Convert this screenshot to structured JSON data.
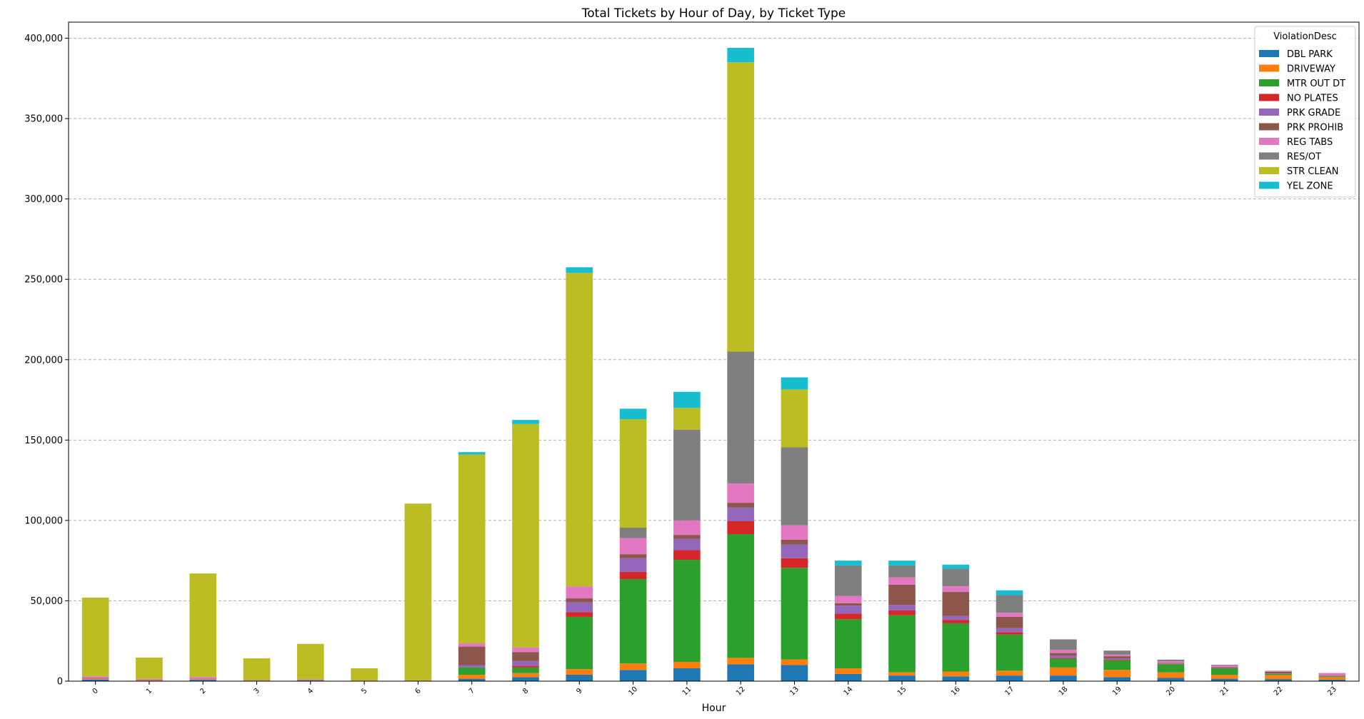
{
  "chart_data": {
    "type": "bar",
    "stacked": true,
    "title": "Total Tickets by Hour of Day, by Ticket Type",
    "xlabel": "Hour",
    "ylabel": "",
    "ylim": [
      0,
      410000
    ],
    "yticks": [
      0,
      50000,
      100000,
      150000,
      200000,
      250000,
      300000,
      350000,
      400000
    ],
    "ytick_labels": [
      "0",
      "50,000",
      "100,000",
      "150,000",
      "200,000",
      "250,000",
      "300,000",
      "350,000",
      "400,000"
    ],
    "grid": "y-dashed",
    "legend_title": "ViolationDesc",
    "legend_position": "top-right",
    "categories": [
      "0",
      "1",
      "2",
      "3",
      "4",
      "5",
      "6",
      "7",
      "8",
      "9",
      "10",
      "11",
      "12",
      "13",
      "14",
      "15",
      "16",
      "17",
      "18",
      "19",
      "20",
      "21",
      "22",
      "23"
    ],
    "series": [
      {
        "name": "DBL PARK",
        "color": "#1f77b4",
        "values": [
          1000,
          300,
          800,
          300,
          400,
          200,
          300,
          1500,
          2500,
          4000,
          7000,
          8000,
          10500,
          10000,
          4500,
          3500,
          3000,
          3500,
          3500,
          2500,
          2000,
          1500,
          1300,
          1000
        ]
      },
      {
        "name": "DRIVEWAY",
        "color": "#ff7f0e",
        "values": [
          500,
          300,
          400,
          200,
          200,
          100,
          200,
          2500,
          2500,
          3500,
          4000,
          4000,
          4000,
          3500,
          3500,
          2000,
          3000,
          3000,
          5000,
          4500,
          3500,
          2500,
          2500,
          1500
        ]
      },
      {
        "name": "MTR OUT DT",
        "color": "#2ca02c",
        "values": [
          0,
          0,
          0,
          0,
          0,
          0,
          0,
          4500,
          3500,
          32500,
          52500,
          63500,
          77000,
          57000,
          30500,
          35500,
          30000,
          22500,
          5500,
          6000,
          5000,
          4000,
          800,
          500
        ]
      },
      {
        "name": "NO PLATES",
        "color": "#d62728",
        "values": [
          0,
          0,
          0,
          0,
          0,
          0,
          0,
          0,
          1000,
          3000,
          4500,
          6000,
          8000,
          6000,
          3500,
          3000,
          2000,
          1500,
          500,
          500,
          200,
          200,
          100,
          100
        ]
      },
      {
        "name": "PRK GRADE",
        "color": "#9467bd",
        "values": [
          500,
          300,
          400,
          200,
          300,
          100,
          0,
          1500,
          3000,
          6000,
          8500,
          7000,
          8500,
          8500,
          5000,
          3500,
          2500,
          2500,
          1500,
          700,
          300,
          200,
          100,
          100
        ]
      },
      {
        "name": "PRK PROHIB",
        "color": "#8c564b",
        "values": [
          0,
          0,
          0,
          0,
          0,
          0,
          0,
          11500,
          5500,
          2500,
          2500,
          2500,
          3000,
          3000,
          1500,
          12500,
          15000,
          7000,
          1500,
          1300,
          400,
          300,
          1000,
          300
        ]
      },
      {
        "name": "REG TABS",
        "color": "#e377c2",
        "values": [
          1000,
          500,
          1000,
          0,
          300,
          0,
          0,
          2000,
          3000,
          7500,
          10000,
          9000,
          12000,
          9000,
          4500,
          4500,
          3500,
          2500,
          2000,
          1000,
          1000,
          1000,
          500,
          1500
        ]
      },
      {
        "name": "RES/OT",
        "color": "#7f7f7f",
        "values": [
          0,
          0,
          0,
          0,
          0,
          0,
          0,
          0,
          0,
          0,
          6500,
          56500,
          82000,
          48500,
          19000,
          7500,
          11000,
          11000,
          6500,
          2500,
          1000,
          500,
          200,
          100
        ]
      },
      {
        "name": "STR CLEAN",
        "color": "#bcbd22",
        "values": [
          49000,
          13300,
          64400,
          13500,
          22000,
          7600,
          110000,
          117500,
          139000,
          195000,
          67500,
          13500,
          180000,
          36000,
          0,
          0,
          0,
          0,
          0,
          0,
          0,
          0,
          0,
          0
        ]
      },
      {
        "name": "YEL ZONE",
        "color": "#17becf",
        "values": [
          0,
          0,
          0,
          0,
          0,
          0,
          0,
          1500,
          2500,
          3500,
          6500,
          10000,
          9000,
          7500,
          3000,
          3000,
          2500,
          3000,
          0,
          0,
          0,
          0,
          0,
          0
        ]
      }
    ]
  }
}
